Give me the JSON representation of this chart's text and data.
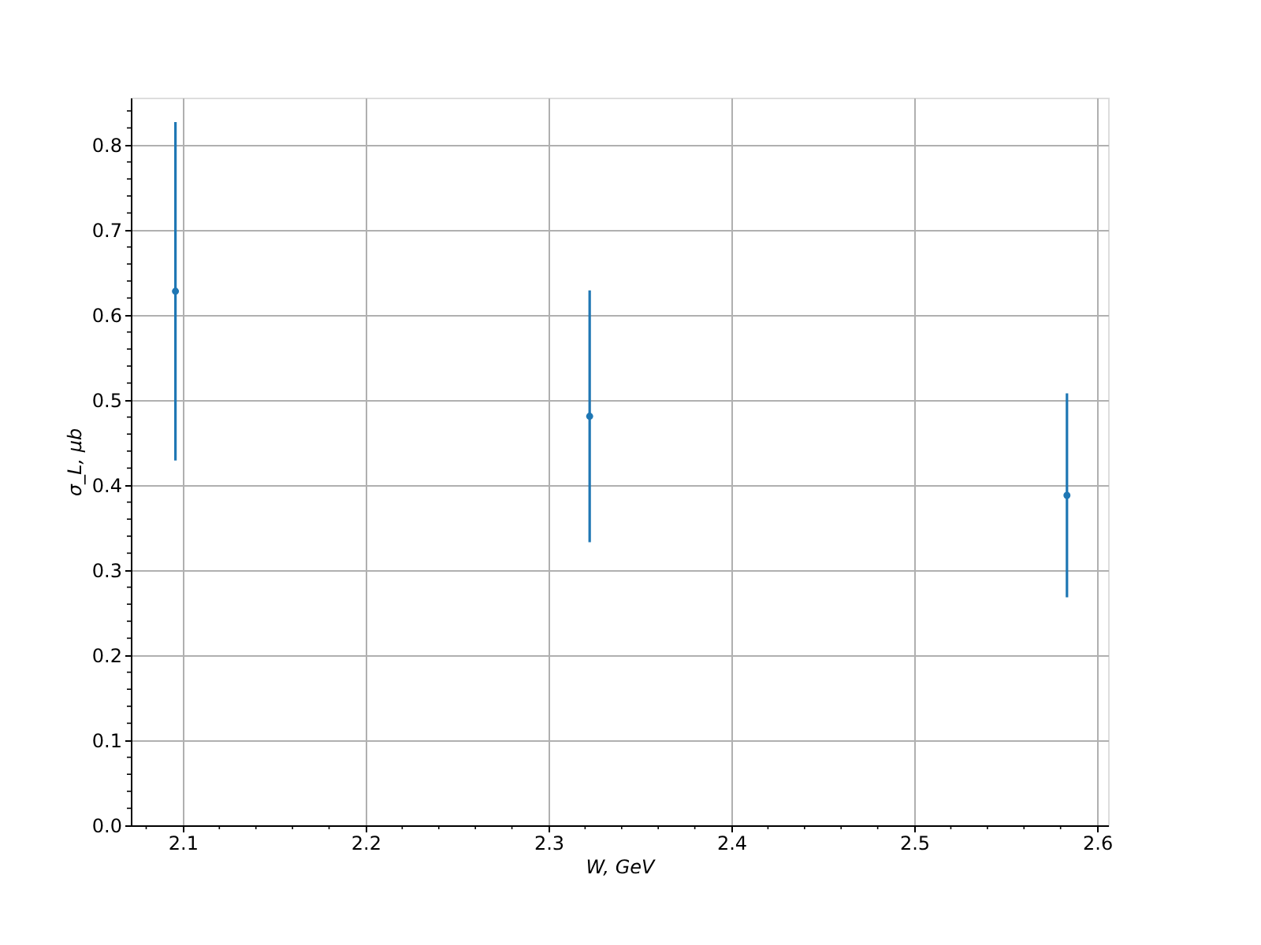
{
  "chart_data": {
    "type": "scatter",
    "xlabel": "W, GeV",
    "ylabel": "σ_L, μb",
    "x": [
      2.096,
      2.3225,
      2.5835
    ],
    "series": [
      {
        "color": "#1f77b4",
        "values": [
          0.628,
          0.481,
          0.388
        ],
        "errors": [
          0.199,
          0.148,
          0.12
        ]
      }
    ],
    "xlim": [
      2.0716,
      2.606
    ],
    "ylim": [
      0,
      0.8556
    ],
    "xticks": [
      2.1,
      2.2,
      2.3,
      2.4,
      2.5,
      2.6,
      {
        "value": 2.08,
        "label": null
      },
      {
        "value": 2.12,
        "label": null
      },
      {
        "value": 2.14,
        "label": null
      },
      {
        "value": 2.16,
        "label": null
      },
      {
        "value": 2.18,
        "label": null
      },
      {
        "value": 2.22,
        "label": null
      },
      {
        "value": 2.24,
        "label": null
      },
      {
        "value": 2.26,
        "label": null
      },
      {
        "value": 2.28,
        "label": null
      },
      {
        "value": 2.32,
        "label": null
      },
      {
        "value": 2.34,
        "label": null
      },
      {
        "value": 2.36,
        "label": null
      },
      {
        "value": 2.38,
        "label": null
      },
      {
        "value": 2.42,
        "label": null
      },
      {
        "value": 2.44,
        "label": null
      },
      {
        "value": 2.46,
        "label": null
      },
      {
        "value": 2.48,
        "label": null
      },
      {
        "value": 2.52,
        "label": null
      },
      {
        "value": 2.54,
        "label": null
      },
      {
        "value": 2.56,
        "label": null
      },
      {
        "value": 2.58,
        "label": null
      }
    ],
    "yticks": [
      {
        "value": 0,
        "label": "0.0"
      },
      0.1,
      0.2,
      0.3,
      0.4,
      0.5,
      0.6,
      0.7,
      0.8,
      {
        "value": 0.02,
        "label": null
      },
      {
        "value": 0.04,
        "label": null
      },
      {
        "value": 0.06,
        "label": null
      },
      {
        "value": 0.08,
        "label": null
      },
      {
        "value": 0.12,
        "label": null
      },
      {
        "value": 0.14,
        "label": null
      },
      {
        "value": 0.16,
        "label": null
      },
      {
        "value": 0.18,
        "label": null
      },
      {
        "value": 0.22,
        "label": null
      },
      {
        "value": 0.24,
        "label": null
      },
      {
        "value": 0.26,
        "label": null
      },
      {
        "value": 0.28,
        "label": null
      },
      {
        "value": 0.32,
        "label": null
      },
      {
        "value": 0.34,
        "label": null
      },
      {
        "value": 0.36,
        "label": null
      },
      {
        "value": 0.38,
        "label": null
      },
      {
        "value": 0.42,
        "label": null
      },
      {
        "value": 0.44,
        "label": null
      },
      {
        "value": 0.46,
        "label": null
      },
      {
        "value": 0.48,
        "label": null
      },
      {
        "value": 0.52,
        "label": null
      },
      {
        "value": 0.54,
        "label": null
      },
      {
        "value": 0.56,
        "label": null
      },
      {
        "value": 0.58,
        "label": null
      },
      {
        "value": 0.62,
        "label": null
      },
      {
        "value": 0.64,
        "label": null
      },
      {
        "value": 0.66,
        "label": null
      },
      {
        "value": 0.68,
        "label": null
      },
      {
        "value": 0.72,
        "label": null
      },
      {
        "value": 0.74,
        "label": null
      },
      {
        "value": 0.76,
        "label": null
      },
      {
        "value": 0.78,
        "label": null
      },
      {
        "value": 0.82,
        "label": null
      },
      {
        "value": 0.84,
        "label": null
      }
    ],
    "grid": true,
    "marker": "circle"
  }
}
